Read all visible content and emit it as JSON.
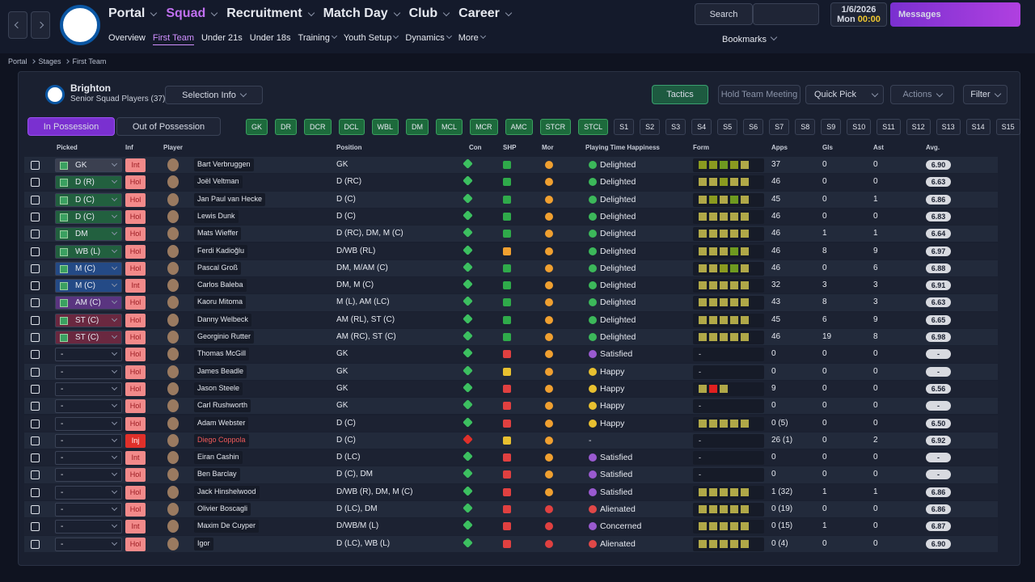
{
  "nav": {
    "menus": [
      "Portal",
      "Squad",
      "Recruitment",
      "Match Day",
      "Club",
      "Career"
    ],
    "active_menu": 1,
    "submenu": [
      "Overview",
      "First Team",
      "Under 21s",
      "Under 18s",
      "Training",
      "Youth Setup",
      "Dynamics",
      "More"
    ],
    "active_submenu": 1,
    "search": "Search",
    "date": "1/6/2026",
    "day": "Mon",
    "time": "00:00",
    "messages": "Messages",
    "bookmarks": "Bookmarks"
  },
  "breadcrumb": [
    "Portal",
    "Stages",
    "First Team"
  ],
  "header": {
    "club": "Brighton",
    "subtitle": "Senior Squad Players (37)",
    "selection_info": "Selection Info",
    "tactics": "Tactics",
    "meeting": "Hold Team Meeting",
    "quick_pick": "Quick Pick",
    "actions": "Actions",
    "filter": "Filter"
  },
  "tabs": [
    "In Possession",
    "Out of Possession"
  ],
  "positions": {
    "filled": [
      "GK",
      "DR",
      "DCR",
      "DCL",
      "WBL",
      "DM",
      "MCL",
      "MCR",
      "AMC",
      "STCR",
      "STCL"
    ],
    "slots": [
      "S1",
      "S2",
      "S3",
      "S4",
      "S5",
      "S6",
      "S7",
      "S8",
      "S9",
      "S10",
      "S11",
      "S12",
      "S13",
      "S14",
      "S15"
    ]
  },
  "table": {
    "columns": [
      "Picked",
      "Inf",
      "Player",
      "Position",
      "Con",
      "SHP",
      "Mor",
      "Playing Time Happiness",
      "Form",
      "Apps",
      "Gls",
      "Ast",
      "Avg."
    ],
    "rows": [
      {
        "picked": "GK",
        "picked_color": "#3b4050",
        "inf": "Int",
        "name": "Bart Verbruggen",
        "position": "GK",
        "shp_color": "#2faa4a",
        "mor_color": "#f0a030",
        "happiness": "Delighted",
        "happiness_color": "#3cb85a",
        "form": [
          "#8a9a20",
          "#8a9a20",
          "#6e9a20",
          "#8a9a20",
          "#b0a848"
        ],
        "apps": "37",
        "gls": "0",
        "ast": "0",
        "avg": "6.90"
      },
      {
        "picked": "D (R)",
        "picked_color": "#22603f",
        "inf": "Hol",
        "name": "Joël Veltman",
        "position": "D (RC)",
        "shp_color": "#2faa4a",
        "mor_color": "#f0a030",
        "happiness": "Delighted",
        "happiness_color": "#3cb85a",
        "form": [
          "#b0a848",
          "#b0a848",
          "#8a9a20",
          "#b0a848",
          "#b0a848"
        ],
        "apps": "46",
        "gls": "0",
        "ast": "0",
        "avg": "6.63"
      },
      {
        "picked": "D (C)",
        "picked_color": "#22603f",
        "inf": "Hol",
        "name": "Jan Paul van Hecke",
        "position": "D (C)",
        "shp_color": "#2faa4a",
        "mor_color": "#f0a030",
        "happiness": "Delighted",
        "happiness_color": "#3cb85a",
        "form": [
          "#b0a848",
          "#8a9a20",
          "#b0a848",
          "#6e9a20",
          "#b0a848"
        ],
        "apps": "45",
        "gls": "0",
        "ast": "1",
        "avg": "6.86"
      },
      {
        "picked": "D (C)",
        "picked_color": "#22603f",
        "inf": "Hol",
        "name": "Lewis Dunk",
        "position": "D (C)",
        "shp_color": "#2faa4a",
        "mor_color": "#f0a030",
        "happiness": "Delighted",
        "happiness_color": "#3cb85a",
        "form": [
          "#b0a848",
          "#b0a848",
          "#b0a848",
          "#b0a848",
          "#b0a848"
        ],
        "apps": "46",
        "gls": "0",
        "ast": "0",
        "avg": "6.83"
      },
      {
        "picked": "DM",
        "picked_color": "#22603f",
        "inf": "Hol",
        "name": "Mats Wieffer",
        "position": "D (RC), DM, M (C)",
        "shp_color": "#2faa4a",
        "mor_color": "#f0a030",
        "happiness": "Delighted",
        "happiness_color": "#3cb85a",
        "form": [
          "#b0a848",
          "#b0a848",
          "#b0a848",
          "#b0a848",
          "#b0a848"
        ],
        "apps": "46",
        "gls": "1",
        "ast": "1",
        "avg": "6.64"
      },
      {
        "picked": "WB (L)",
        "picked_color": "#22603f",
        "inf": "Hol",
        "name": "Ferdi Kadioğlu",
        "position": "D/WB (RL)",
        "shp_color": "#f0a030",
        "mor_color": "#f0a030",
        "happiness": "Delighted",
        "happiness_color": "#3cb85a",
        "form": [
          "#b0a848",
          "#b0a848",
          "#b0a848",
          "#6e9a20",
          "#b0a848"
        ],
        "apps": "46",
        "gls": "8",
        "ast": "9",
        "avg": "6.97"
      },
      {
        "picked": "M (C)",
        "picked_color": "#244a86",
        "inf": "Hol",
        "name": "Pascal Groß",
        "position": "DM, M/AM (C)",
        "shp_color": "#2faa4a",
        "mor_color": "#f0a030",
        "happiness": "Delighted",
        "happiness_color": "#3cb85a",
        "form": [
          "#b0a848",
          "#b0a848",
          "#8a9a20",
          "#6e9a20",
          "#b0a848"
        ],
        "apps": "46",
        "gls": "0",
        "ast": "6",
        "avg": "6.88"
      },
      {
        "picked": "M (C)",
        "picked_color": "#244a86",
        "inf": "Int",
        "name": "Carlos Baleba",
        "position": "DM, M (C)",
        "shp_color": "#2faa4a",
        "mor_color": "#f0a030",
        "happiness": "Delighted",
        "happiness_color": "#3cb85a",
        "form": [
          "#b0a848",
          "#b0a848",
          "#b0a848",
          "#b0a848",
          "#b0a848"
        ],
        "apps": "32",
        "gls": "3",
        "ast": "3",
        "avg": "6.91"
      },
      {
        "picked": "AM (C)",
        "picked_color": "#5a3580",
        "inf": "Hol",
        "name": "Kaoru Mitoma",
        "position": "M (L), AM (LC)",
        "shp_color": "#2faa4a",
        "mor_color": "#f0a030",
        "happiness": "Delighted",
        "happiness_color": "#3cb85a",
        "form": [
          "#b0a848",
          "#b0a848",
          "#b0a848",
          "#b0a848",
          "#b0a848"
        ],
        "apps": "43",
        "gls": "8",
        "ast": "3",
        "avg": "6.63"
      },
      {
        "picked": "ST (C)",
        "picked_color": "#6a2840",
        "inf": "Hol",
        "name": "Danny Welbeck",
        "position": "AM (RL), ST (C)",
        "shp_color": "#2faa4a",
        "mor_color": "#f0a030",
        "happiness": "Delighted",
        "happiness_color": "#3cb85a",
        "form": [
          "#b0a848",
          "#b0a848",
          "#b0a848",
          "#b0a848",
          "#b0a848"
        ],
        "apps": "45",
        "gls": "6",
        "ast": "9",
        "avg": "6.65"
      },
      {
        "picked": "ST (C)",
        "picked_color": "#6a2840",
        "inf": "Hol",
        "name": "Georginio Rutter",
        "position": "AM (RC), ST (C)",
        "shp_color": "#2faa4a",
        "mor_color": "#f0a030",
        "happiness": "Delighted",
        "happiness_color": "#3cb85a",
        "form": [
          "#b0a848",
          "#b0a848",
          "#b0a848",
          "#b0a848",
          "#b0a848"
        ],
        "apps": "46",
        "gls": "19",
        "ast": "8",
        "avg": "6.98"
      },
      {
        "picked": "-",
        "inf": "Hol",
        "name": "Thomas McGill",
        "position": "GK",
        "shp_color": "#e04040",
        "mor_color": "#f0a030",
        "happiness": "Satisfied",
        "happiness_color": "#9a5ad0",
        "form": "-",
        "apps": "0",
        "gls": "0",
        "ast": "0",
        "avg": "-"
      },
      {
        "picked": "-",
        "inf": "Hol",
        "name": "James Beadle",
        "position": "GK",
        "shp_color": "#e8c030",
        "mor_color": "#f0a030",
        "happiness": "Happy",
        "happiness_color": "#e8c030",
        "form": "-",
        "apps": "0",
        "gls": "0",
        "ast": "0",
        "avg": "-"
      },
      {
        "picked": "-",
        "inf": "Hol",
        "name": "Jason Steele",
        "position": "GK",
        "shp_color": "#e04040",
        "mor_color": "#f0a030",
        "happiness": "Happy",
        "happiness_color": "#e8c030",
        "form": [
          "#b0a848",
          "#e02020",
          "#b0a848"
        ],
        "apps": "9",
        "gls": "0",
        "ast": "0",
        "avg": "6.56"
      },
      {
        "picked": "-",
        "inf": "Hol",
        "name": "Carl Rushworth",
        "position": "GK",
        "shp_color": "#e04040",
        "mor_color": "#f0a030",
        "happiness": "Happy",
        "happiness_color": "#e8c030",
        "form": "-",
        "apps": "0",
        "gls": "0",
        "ast": "0",
        "avg": "-"
      },
      {
        "picked": "-",
        "inf": "Hol",
        "name": "Adam Webster",
        "position": "D (C)",
        "shp_color": "#e04040",
        "mor_color": "#f0a030",
        "happiness": "Happy",
        "happiness_color": "#e8c030",
        "form": [
          "#b0a848",
          "#b0a848",
          "#b0a848",
          "#b0a848",
          "#b0a848"
        ],
        "apps": "0 (5)",
        "gls": "0",
        "ast": "0",
        "avg": "6.50"
      },
      {
        "picked": "-",
        "inf": "Inj",
        "inf_color": "#e0302a",
        "name": "Diego Coppola",
        "name_color": "#f05a5a",
        "position": "D (C)",
        "shp_color": "#e8c030",
        "mor_color": "#f0a030",
        "happiness": "-",
        "form": "-",
        "apps": "26 (1)",
        "gls": "0",
        "ast": "2",
        "avg": "6.92"
      },
      {
        "picked": "-",
        "inf": "Int",
        "name": "Eiran Cashin",
        "position": "D (LC)",
        "shp_color": "#e04040",
        "mor_color": "#f0a030",
        "happiness": "Satisfied",
        "happiness_color": "#9a5ad0",
        "form": "-",
        "apps": "0",
        "gls": "0",
        "ast": "0",
        "avg": "-"
      },
      {
        "picked": "-",
        "inf": "Hol",
        "name": "Ben Barclay",
        "position": "D (C), DM",
        "shp_color": "#e04040",
        "mor_color": "#f0a030",
        "happiness": "Satisfied",
        "happiness_color": "#9a5ad0",
        "form": "-",
        "apps": "0",
        "gls": "0",
        "ast": "0",
        "avg": "-"
      },
      {
        "picked": "-",
        "inf": "Hol",
        "name": "Jack Hinshelwood",
        "position": "D/WB (R), DM, M (C)",
        "shp_color": "#e04040",
        "mor_color": "#f0a030",
        "happiness": "Satisfied",
        "happiness_color": "#9a5ad0",
        "form": [
          "#b0a848",
          "#b0a848",
          "#b0a848",
          "#b0a848",
          "#b0a848"
        ],
        "apps": "1 (32)",
        "gls": "1",
        "ast": "1",
        "avg": "6.86"
      },
      {
        "picked": "-",
        "inf": "Hol",
        "name": "Olivier Boscagli",
        "position": "D (LC), DM",
        "shp_color": "#e04040",
        "mor_color": "#e04040",
        "happiness": "Alienated",
        "happiness_color": "#e04848",
        "form": [
          "#b0a848",
          "#b0a848",
          "#b0a848",
          "#b0a848",
          "#b0a848"
        ],
        "apps": "0 (19)",
        "gls": "0",
        "ast": "0",
        "avg": "6.86"
      },
      {
        "picked": "-",
        "inf": "Int",
        "name": "Maxim De Cuyper",
        "position": "D/WB/M (L)",
        "shp_color": "#e04040",
        "mor_color": "#e04040",
        "happiness": "Concerned",
        "happiness_color": "#9a5ad0",
        "form": [
          "#b0a848",
          "#b0a848",
          "#b0a848",
          "#b0a848",
          "#b0a848"
        ],
        "apps": "0 (15)",
        "gls": "1",
        "ast": "0",
        "avg": "6.87"
      },
      {
        "picked": "-",
        "inf": "Hol",
        "name": "Igor",
        "position": "D (LC), WB (L)",
        "shp_color": "#e04040",
        "mor_color": "#e04040",
        "happiness": "Alienated",
        "happiness_color": "#e04848",
        "form": [
          "#b0a848",
          "#b0a848",
          "#b0a848",
          "#b0a848",
          "#b0a848"
        ],
        "apps": "0 (4)",
        "gls": "0",
        "ast": "0",
        "avg": "6.90"
      }
    ]
  }
}
